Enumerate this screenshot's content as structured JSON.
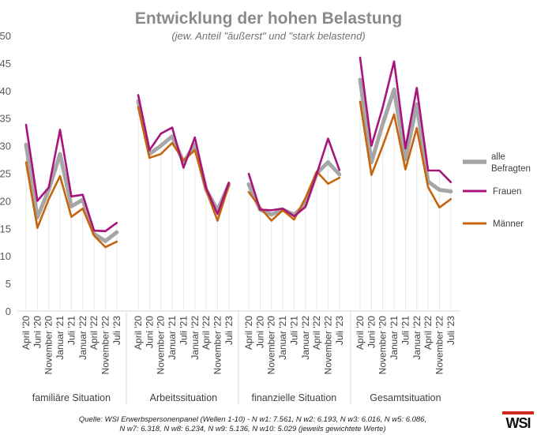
{
  "chart_data": {
    "type": "line",
    "title": "Entwicklung der hohen Belastung",
    "subtitle": "(jew. Anteil \"äußerst\" und \"stark belastend)",
    "ylim": [
      0,
      50
    ],
    "yticks": [
      0,
      5,
      10,
      15,
      20,
      25,
      30,
      35,
      40,
      45,
      50
    ],
    "grid": false,
    "legend_position": "right",
    "waves": [
      "April '20",
      "Juni '20",
      "November '20",
      "Januar '21",
      "Juli '21",
      "Januar '22",
      "April '22",
      "November '22",
      "Juli '23"
    ],
    "groups": [
      {
        "name": "familiäre Situation",
        "series": [
          {
            "name": "alle Befragten",
            "values": [
              30.2,
              17.0,
              22.0,
              28.5,
              19.0,
              20.2,
              14.0,
              12.7,
              14.3
            ]
          },
          {
            "name": "Frauen",
            "values": [
              33.8,
              20.0,
              22.4,
              32.9,
              20.8,
              21.1,
              14.6,
              14.5,
              16.0
            ]
          },
          {
            "name": "Männer",
            "values": [
              27.0,
              15.1,
              20.3,
              24.5,
              17.1,
              18.6,
              13.7,
              11.6,
              12.6
            ]
          }
        ]
      },
      {
        "name": "Arbeitssituation",
        "series": [
          {
            "name": "alle Befragten",
            "values": [
              38.1,
              28.5,
              30.0,
              31.7,
              27.0,
              30.2,
              22.0,
              18.3,
              23.0
            ]
          },
          {
            "name": "Frauen",
            "values": [
              39.2,
              29.2,
              32.2,
              33.3,
              26.0,
              31.5,
              22.3,
              17.6,
              23.3
            ]
          },
          {
            "name": "Männer",
            "values": [
              37.0,
              27.8,
              28.5,
              30.5,
              27.3,
              29.2,
              21.9,
              16.4,
              22.8
            ]
          }
        ]
      },
      {
        "name": "finanzielle Situation",
        "series": [
          {
            "name": "alle Befragten",
            "values": [
              23.0,
              18.4,
              17.5,
              18.4,
              17.5,
              19.3,
              25.0,
              27.0,
              24.8
            ]
          },
          {
            "name": "Frauen",
            "values": [
              24.9,
              18.4,
              18.3,
              18.6,
              17.2,
              18.9,
              24.9,
              31.3,
              25.6
            ]
          },
          {
            "name": "Männer",
            "values": [
              21.6,
              18.8,
              16.4,
              18.3,
              16.6,
              20.5,
              25.3,
              23.1,
              24.2
            ]
          }
        ]
      },
      {
        "name": "Gesamtsituation",
        "series": [
          {
            "name": "alle Befragten",
            "values": [
              42.0,
              27.0,
              34.0,
              40.2,
              27.5,
              37.5,
              23.5,
              22.0,
              21.7
            ]
          },
          {
            "name": "Frauen",
            "values": [
              46.0,
              30.0,
              37.0,
              45.3,
              29.5,
              40.5,
              25.5,
              25.5,
              23.4
            ]
          },
          {
            "name": "Männer",
            "values": [
              38.0,
              24.7,
              30.0,
              35.7,
              25.7,
              33.2,
              22.5,
              18.8,
              20.3
            ]
          }
        ]
      }
    ],
    "legend": [
      "alle Befragten",
      "Frauen",
      "Männer"
    ],
    "colors": {
      "alle Befragten": "#a6a6a6",
      "Frauen": "#a8147a",
      "Männer": "#c5650d"
    }
  },
  "source": {
    "line1": "Quelle: WSI Erwerbspersonenpanel (Wellen 1-10) - N w1: 7.561,  N w2: 6.193, N w3: 6.016, N w5: 6.086,",
    "line2": "N w7: 6.318, N w8: 6.234, N w9: 5.136, N w10: 5.029  (jeweils gewichtete Werte)"
  },
  "logo_text": "WSI"
}
